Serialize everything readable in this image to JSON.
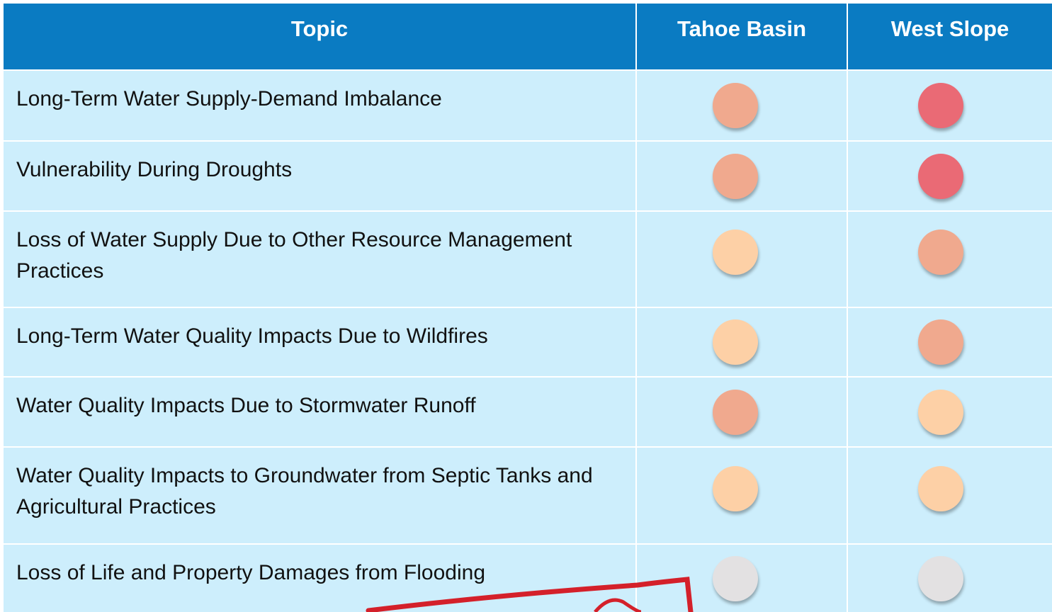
{
  "table": {
    "header": [
      "Topic",
      "Tahoe Basin",
      "West Slope"
    ],
    "rows": [
      {
        "topic": "Long-Term Water Supply-Demand Imbalance",
        "colors": [
          "#f0a98e",
          "#ea6a75"
        ]
      },
      {
        "topic": "Vulnerability During Droughts",
        "colors": [
          "#f0a98e",
          "#ea6a75"
        ]
      },
      {
        "topic": "Loss of Water Supply Due to Other Resource Management Practices",
        "colors": [
          "#fdd0a6",
          "#f0a98e"
        ]
      },
      {
        "topic": "Long-Term Water Quality Impacts Due to Wildfires",
        "colors": [
          "#fdd0a6",
          "#f0a98e"
        ]
      },
      {
        "topic": "Water Quality Impacts Due to Stormwater Runoff",
        "colors": [
          "#f0a98e",
          "#fdd0a6"
        ]
      },
      {
        "topic": "Water Quality Impacts to Groundwater from Septic Tanks and Agricultural Practices",
        "colors": [
          "#fdd0a6",
          "#fdd0a6"
        ]
      },
      {
        "topic": "Loss of Life and Property Damages from Flooding",
        "colors": [
          "#e3e1e2",
          "#e3e1e2"
        ]
      }
    ]
  }
}
